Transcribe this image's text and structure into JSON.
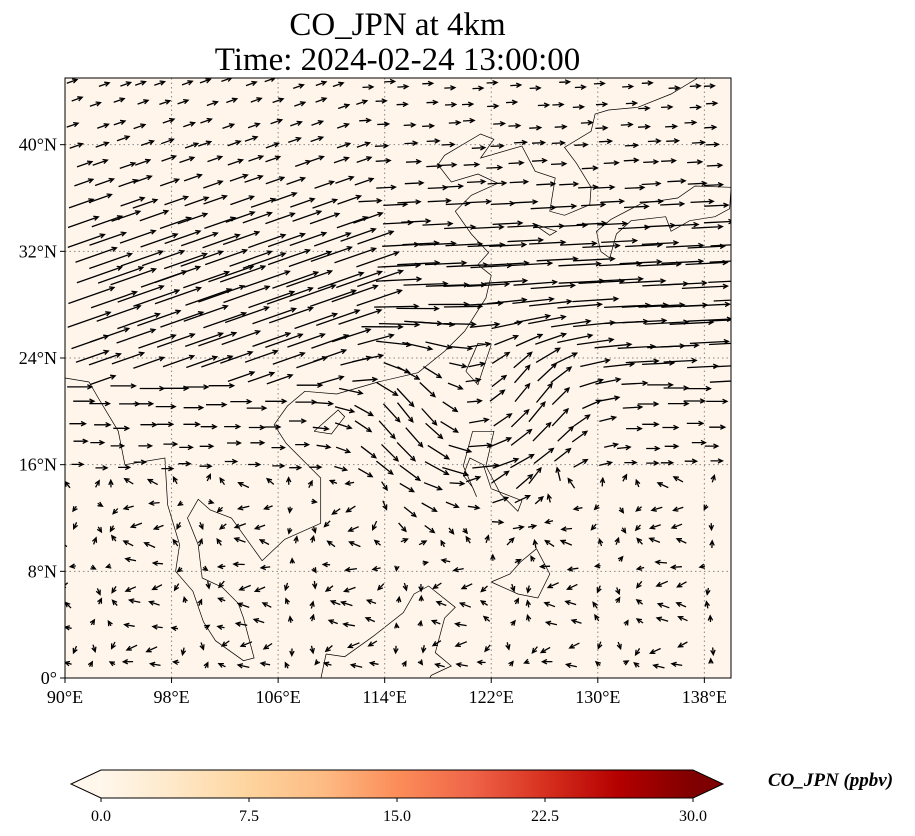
{
  "title": {
    "line1": "CO_JPN at 4km",
    "line2": "Time: 2024-02-24 13:00:00"
  },
  "map": {
    "projection": "PlateCarree",
    "lon_range": [
      90,
      140
    ],
    "lat_range": [
      0,
      45
    ],
    "x_ticks": [
      {
        "lon": 90,
        "label": "90°E"
      },
      {
        "lon": 98,
        "label": "98°E"
      },
      {
        "lon": 106,
        "label": "106°E"
      },
      {
        "lon": 114,
        "label": "114°E"
      },
      {
        "lon": 122,
        "label": "122°E"
      },
      {
        "lon": 130,
        "label": "130°E"
      },
      {
        "lon": 138,
        "label": "138°E"
      }
    ],
    "y_ticks": [
      {
        "lat": 0,
        "label": "0°"
      },
      {
        "lat": 8,
        "label": "8°N"
      },
      {
        "lat": 16,
        "label": "16°N"
      },
      {
        "lat": 24,
        "label": "24°N"
      },
      {
        "lat": 32,
        "label": "32°N"
      },
      {
        "lat": 40,
        "label": "40°N"
      }
    ],
    "gridlines": "dotted",
    "background_color": "#fff5eb",
    "coastline_color": "#000000",
    "vector_color": "#000000"
  },
  "colorbar": {
    "label": "CO_JPN (ppbv)",
    "min": 0.0,
    "max": 30.0,
    "extend": "both",
    "colormap": "OrRd",
    "ticks": [
      {
        "value": 0.0,
        "label": "0.0"
      },
      {
        "value": 7.5,
        "label": "7.5"
      },
      {
        "value": 15.0,
        "label": "15.0"
      },
      {
        "value": 22.5,
        "label": "22.5"
      },
      {
        "value": 30.0,
        "label": "30.0"
      }
    ],
    "colors": [
      "#fff7ec",
      "#fee8c8",
      "#fdd49e",
      "#fdbb84",
      "#fc8d59",
      "#ef6548",
      "#d7301f",
      "#b30000",
      "#7f0000"
    ]
  }
}
